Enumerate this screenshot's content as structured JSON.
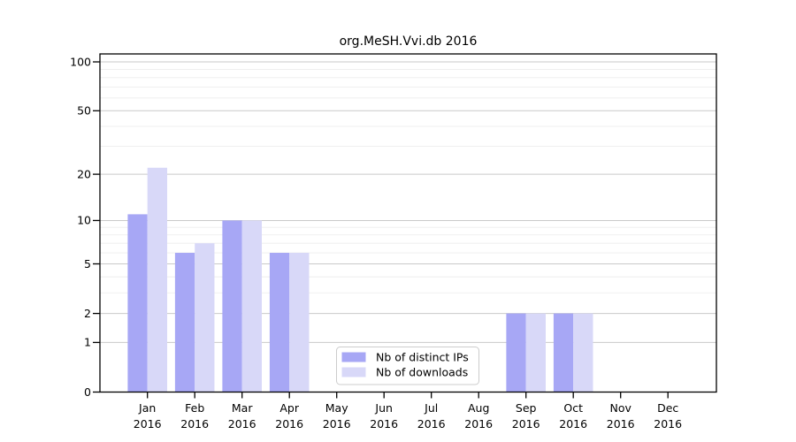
{
  "chart_data": {
    "type": "bar",
    "title": "org.MeSH.Vvi.db 2016",
    "year": "2016",
    "categories": [
      "Jan",
      "Feb",
      "Mar",
      "Apr",
      "May",
      "Jun",
      "Jul",
      "Aug",
      "Sep",
      "Oct",
      "Nov",
      "Dec"
    ],
    "series": [
      {
        "name": "Nb of distinct IPs",
        "color": "#a7a7f5",
        "values": [
          11,
          6,
          10,
          6,
          0,
          0,
          0,
          0,
          2,
          2,
          0,
          0
        ]
      },
      {
        "name": "Nb of downloads",
        "color": "#d8d8f8",
        "values": [
          22,
          7,
          10,
          6,
          0,
          0,
          0,
          0,
          2,
          2,
          0,
          0
        ]
      }
    ],
    "yscale": "log1p",
    "y_ticks": [
      0,
      1,
      2,
      5,
      10,
      20,
      50,
      100
    ],
    "y_minor_gridlines": [
      3,
      4,
      6,
      7,
      8,
      9,
      30,
      40,
      60,
      70,
      80,
      90
    ],
    "ylim": [
      0,
      112
    ],
    "xlabel": "",
    "ylabel": "",
    "grid": true,
    "legend_position": "lower center"
  },
  "colors": {
    "background": "#ffffff",
    "axis": "#000000",
    "major_grid": "#c9c9c9",
    "minor_grid": "#ededed",
    "legend_border": "#cccccc",
    "legend_fill": "#ffffff"
  }
}
